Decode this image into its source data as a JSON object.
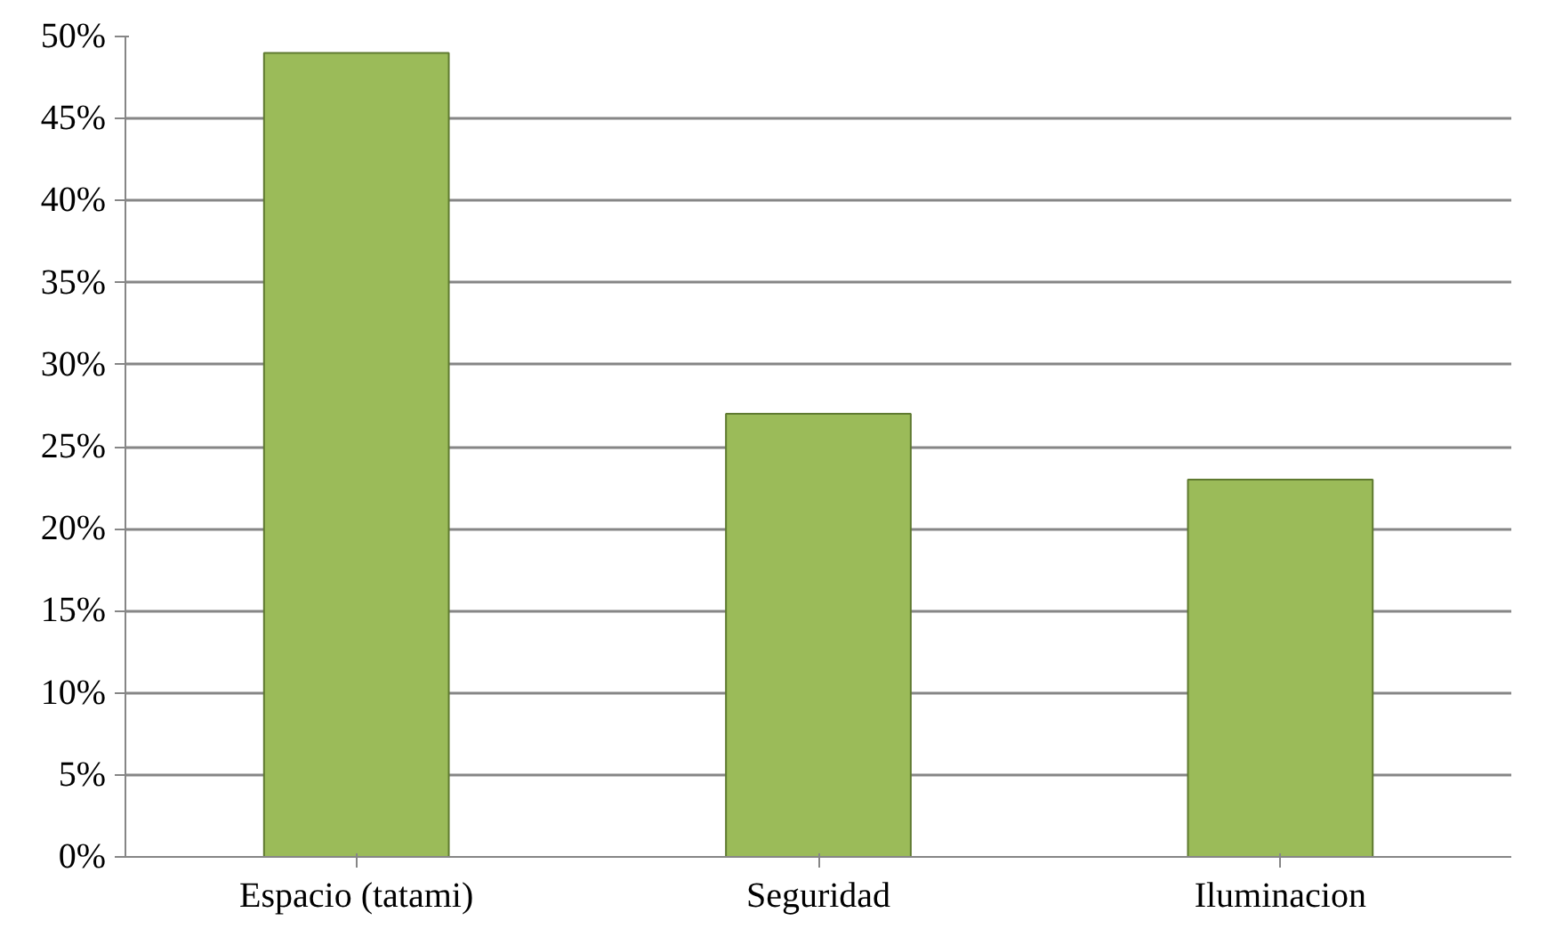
{
  "chart_data": {
    "type": "bar",
    "categories": [
      "Espacio (tatami)",
      "Seguridad",
      "Iluminacion"
    ],
    "values": [
      49,
      27,
      23
    ],
    "color": "#9bbb59",
    "ylim": [
      0,
      50
    ],
    "yticks": [
      {
        "value": 0,
        "label": "0%"
      },
      {
        "value": 5,
        "label": "5%"
      },
      {
        "value": 10,
        "label": "10%"
      },
      {
        "value": 15,
        "label": "15%"
      },
      {
        "value": 20,
        "label": "20%"
      },
      {
        "value": 25,
        "label": "25%"
      },
      {
        "value": 30,
        "label": "30%"
      },
      {
        "value": 35,
        "label": "35%"
      },
      {
        "value": 40,
        "label": "40%"
      },
      {
        "value": 45,
        "label": "45%"
      },
      {
        "value": 50,
        "label": "50%"
      }
    ],
    "grid": "y"
  }
}
